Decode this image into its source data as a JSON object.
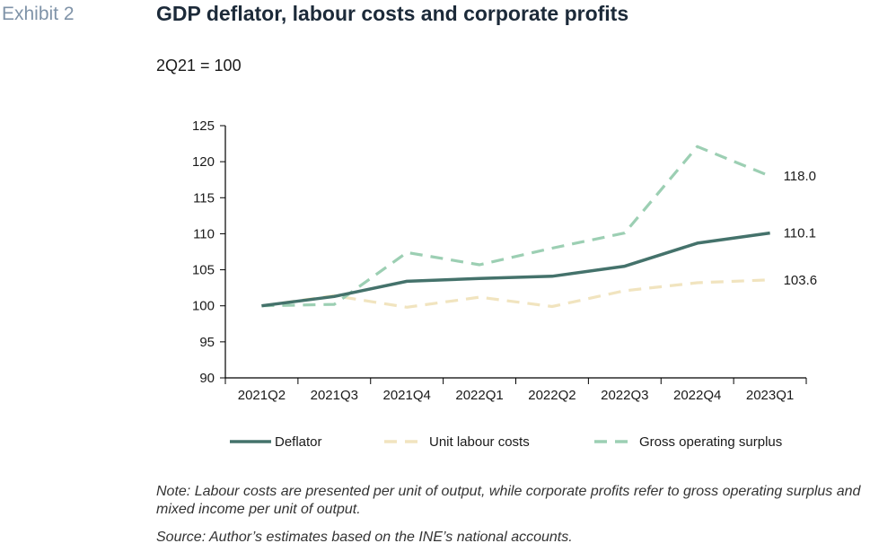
{
  "exhibit_label": "Exhibit 2",
  "chart_data": {
    "type": "line",
    "title": "GDP deflator, labour costs and corporate profits",
    "subtitle": "2Q21 = 100",
    "categories": [
      "2021Q2",
      "2021Q3",
      "2021Q4",
      "2022Q1",
      "2022Q2",
      "2022Q3",
      "2022Q4",
      "2023Q1"
    ],
    "ylim": [
      90,
      125
    ],
    "yticks": [
      90,
      95,
      100,
      105,
      110,
      115,
      120,
      125
    ],
    "grid": false,
    "legend_position": "bottom",
    "series": [
      {
        "name": "Deflator",
        "values": [
          100.0,
          101.3,
          103.4,
          103.8,
          104.1,
          105.5,
          108.7,
          110.1
        ],
        "color": "#44726b",
        "style": "solid",
        "end_label": "110.1"
      },
      {
        "name": "Unit labour costs",
        "values": [
          100.0,
          101.4,
          99.8,
          101.2,
          99.9,
          102.1,
          103.2,
          103.6
        ],
        "color": "#f1e4bf",
        "style": "dashed",
        "end_label": "103.6"
      },
      {
        "name": "Gross operating surplus",
        "values": [
          100.0,
          100.2,
          107.4,
          105.7,
          108.0,
          110.1,
          122.1,
          118.0
        ],
        "color": "#9ccfb3",
        "style": "dashed",
        "end_label": "118.0"
      }
    ]
  },
  "note": "Note: Labour costs are presented per unit of output, while corporate profits refer to gross operating surplus and mixed income per unit of output.",
  "source": "Source: Author’s estimates based on the INE’s national accounts."
}
